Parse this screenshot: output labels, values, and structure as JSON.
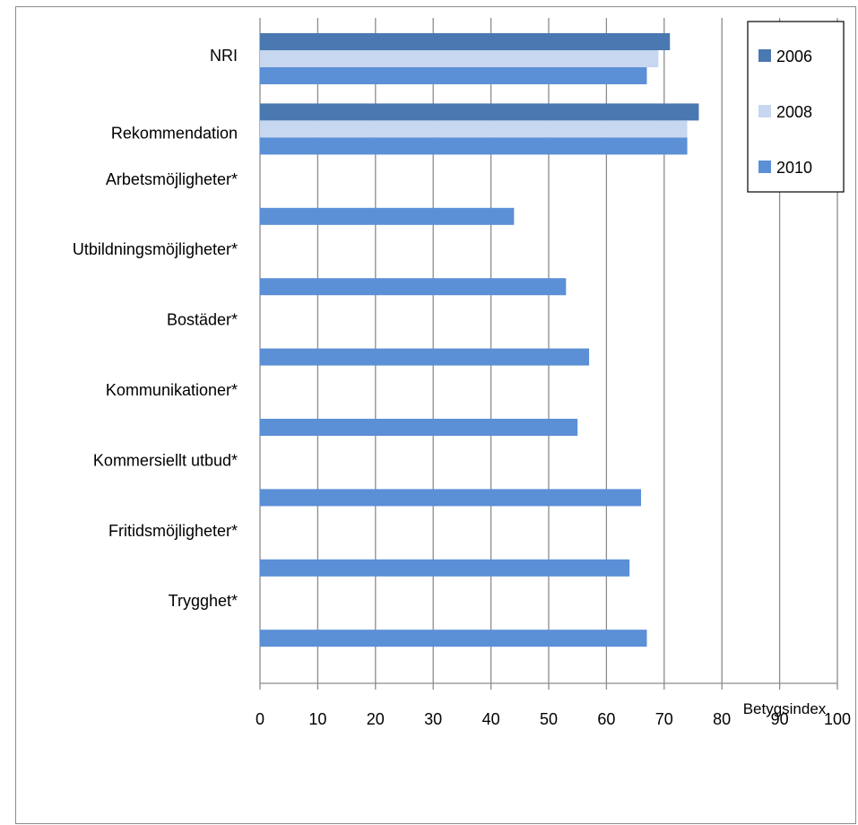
{
  "chart_data": {
    "type": "bar",
    "orientation": "horizontal",
    "categories": [
      "NRI",
      "Rekommendation",
      "Arbetsmöjligheter*",
      "Utbildningsmöjligheter*",
      "Bostäder*",
      "Kommunikationer*",
      "Kommersiellt utbud*",
      "Fritidsmöjligheter*",
      "Trygghet*"
    ],
    "series": [
      {
        "name": "2006",
        "color": "#4a78b0",
        "values": [
          71,
          76,
          null,
          null,
          null,
          null,
          null,
          null,
          null
        ]
      },
      {
        "name": "2008",
        "color": "#c6d7ef",
        "values": [
          69,
          74,
          null,
          null,
          null,
          null,
          null,
          null,
          null
        ]
      },
      {
        "name": "2010",
        "color": "#5b8fd6",
        "values": [
          67,
          74,
          44,
          53,
          57,
          55,
          66,
          64,
          67
        ]
      }
    ],
    "xlim": [
      0,
      100
    ],
    "xticks": [
      "0",
      "10",
      "20",
      "30",
      "40",
      "50",
      "60",
      "70",
      "80",
      "90",
      "100"
    ],
    "xlabel": "Betygsindex",
    "grid": "vertical",
    "legend_position": "top-right"
  }
}
